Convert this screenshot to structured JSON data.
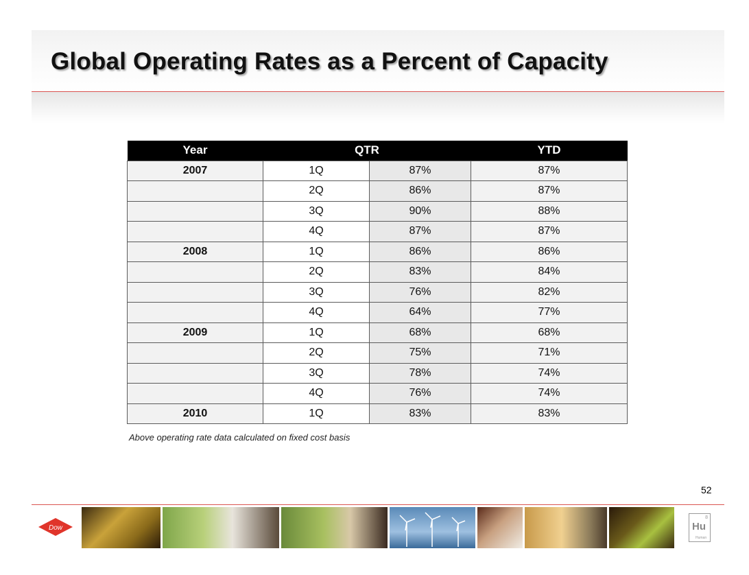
{
  "slide": {
    "title": "Global Operating Rates as a Percent of Capacity",
    "footnote": "Above operating rate data calculated on fixed cost basis",
    "page_number": "52",
    "logo_text": "Dow",
    "element_badge": {
      "symbol": "Hu",
      "number": "8",
      "name": "Human"
    }
  },
  "table": {
    "headers": {
      "year": "Year",
      "qtr": "QTR",
      "ytd": "YTD"
    },
    "rows": [
      {
        "year": "2007",
        "quarter": "1Q",
        "qtr": "87%",
        "ytd": "87%"
      },
      {
        "year": "",
        "quarter": "2Q",
        "qtr": "86%",
        "ytd": "87%"
      },
      {
        "year": "",
        "quarter": "3Q",
        "qtr": "90%",
        "ytd": "88%"
      },
      {
        "year": "",
        "quarter": "4Q",
        "qtr": "87%",
        "ytd": "87%"
      },
      {
        "year": "2008",
        "quarter": "1Q",
        "qtr": "86%",
        "ytd": "86%"
      },
      {
        "year": "",
        "quarter": "2Q",
        "qtr": "83%",
        "ytd": "84%"
      },
      {
        "year": "",
        "quarter": "3Q",
        "qtr": "76%",
        "ytd": "82%"
      },
      {
        "year": "",
        "quarter": "4Q",
        "qtr": "64%",
        "ytd": "77%"
      },
      {
        "year": "2009",
        "quarter": "1Q",
        "qtr": "68%",
        "ytd": "68%"
      },
      {
        "year": "",
        "quarter": "2Q",
        "qtr": "75%",
        "ytd": "71%"
      },
      {
        "year": "",
        "quarter": "3Q",
        "qtr": "78%",
        "ytd": "74%"
      },
      {
        "year": "",
        "quarter": "4Q",
        "qtr": "76%",
        "ytd": "74%"
      },
      {
        "year": "2010",
        "quarter": "1Q",
        "qtr": "83%",
        "ytd": "83%"
      }
    ]
  },
  "colors": {
    "accent_red": "#d9534f",
    "header_bg": "#000000"
  },
  "footer_photos": [
    "wafer-photo-icon",
    "painting-child-photo-icon",
    "corn-scientist-photo-icon",
    "wind-turbines-photo-icon",
    "hand-milk-photo-icon",
    "child-bottle-photo-icon",
    "lab-glass-photo-icon"
  ]
}
